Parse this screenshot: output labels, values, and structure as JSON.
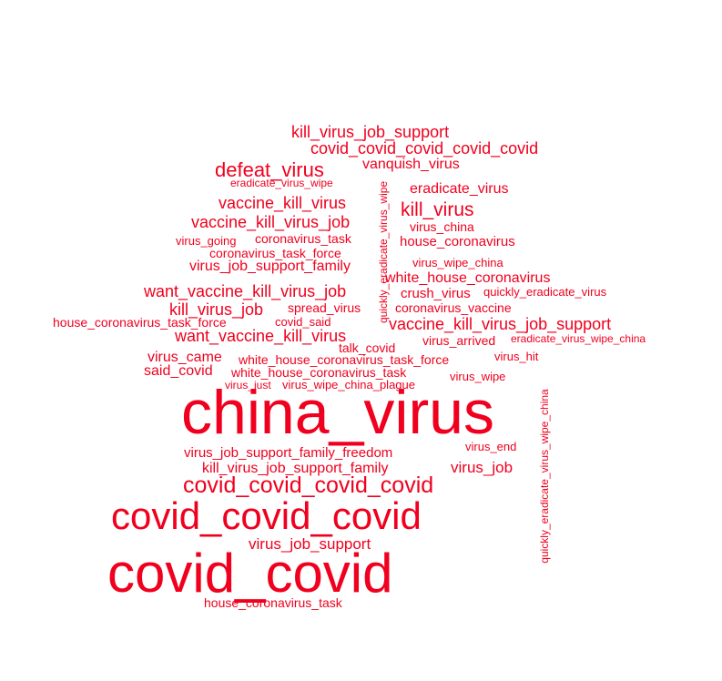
{
  "word_color": "#f0001e",
  "background": "#ffffff",
  "words": [
    "kill_virus_job_support",
    "covid_covid_covid_covid_covid",
    "defeat_virus",
    "vanquish_virus",
    "eradicate_virus_wipe",
    "eradicate_virus",
    "vaccine_kill_virus",
    "kill_virus",
    "vaccine_kill_virus_job",
    "virus_china",
    "virus_going",
    "coronavirus_task",
    "house_coronavirus",
    "coronavirus_task_force",
    "virus_wipe_china",
    "virus_job_support_family",
    "white_house_coronavirus",
    "want_vaccine_kill_virus_job",
    "crush_virus",
    "quickly_eradicate_virus",
    "kill_virus_job",
    "spread_virus",
    "coronavirus_vaccine",
    "house_coronavirus_task_force",
    "covid_said",
    "vaccine_kill_virus_job_support",
    "want_vaccine_kill_virus",
    "virus_arrived",
    "eradicate_virus_wipe_china",
    "talk_covid",
    "virus_came",
    "white_house_coronavirus_task_force",
    "virus_hit",
    "said_covid",
    "white_house_coronavirus_task",
    "virus_wipe",
    "virus_just",
    "virus_wipe_china_plague",
    "china_virus",
    "virus_job_support_family_freedom",
    "virus_end",
    "virus_job",
    "kill_virus_job_support_family",
    "covid_covid_covid_covid",
    "covid_covid_covid",
    "virus_job_support",
    "covid_covid",
    "house_coronavirus_task",
    "quickly_eradicate_virus_wipe",
    "quickly_eradicate_virus_wipe_china"
  ]
}
